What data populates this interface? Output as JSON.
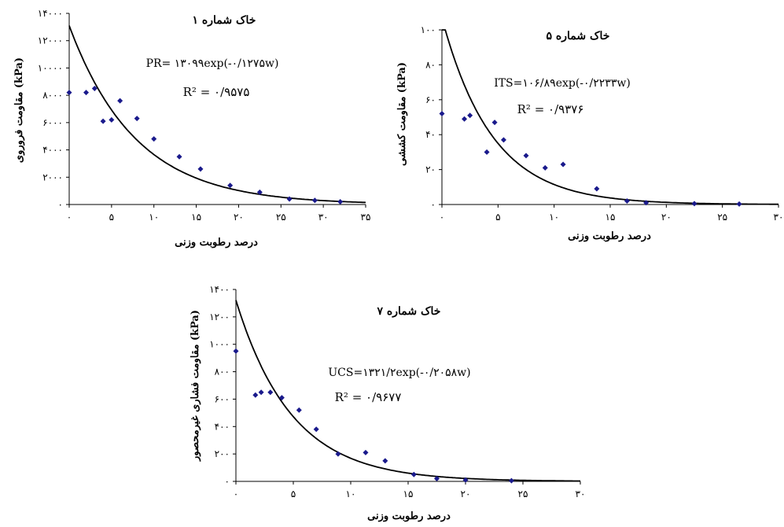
{
  "chart_data": [
    {
      "type": "scatter",
      "title": "خاک شماره ۱",
      "xlabel": "درصد رطوبت وزنی",
      "ylabel": "مقاومت فروروی (kPa)",
      "xlim": [
        0,
        35
      ],
      "ylim": [
        0,
        14000
      ],
      "xticks": [
        "۰",
        "۵",
        "۱۰",
        "۱۵",
        "۲۰",
        "۲۵",
        "۳۰",
        "۳۵"
      ],
      "yticks": [
        "۰",
        "۲۰۰۰",
        "۴۰۰۰",
        "۶۰۰۰",
        "۸۰۰۰",
        "۱۰۰۰۰",
        "۱۲۰۰۰",
        "۱۴۰۰۰"
      ],
      "equation": "PR= ۱۳۰۹۹exp(-۰/۱۲۷۵w)",
      "r2_label": "R² = ۰/۹۵۷۵",
      "fit": {
        "a": 13099,
        "b": 0.1275
      },
      "x": [
        0,
        2,
        3,
        4,
        5,
        6,
        8,
        10,
        13,
        15.5,
        19,
        22.5,
        26,
        29,
        32
      ],
      "y": [
        8200,
        8200,
        8500,
        6100,
        6200,
        7600,
        6300,
        4800,
        3500,
        2600,
        1400,
        900,
        400,
        300,
        200
      ]
    },
    {
      "type": "scatter",
      "title": "خاک شماره ۵",
      "xlabel": "درصد رطوبت وزنی",
      "ylabel": "مقاومت کششی (kPa)",
      "xlim": [
        0,
        30
      ],
      "ylim": [
        0,
        100
      ],
      "xticks": [
        "۰",
        "۵",
        "۱۰",
        "۱۵",
        "۲۰",
        "۲۵",
        "۳۰"
      ],
      "yticks": [
        "۰",
        "۲۰",
        "۴۰",
        "۶۰",
        "۸۰",
        "۱۰۰"
      ],
      "equation": "ITS=۱۰۶/۸۹exp(-۰/۲۲۳۳w)",
      "r2_label": "R² = ۰/۹۳۷۶",
      "fit": {
        "a": 106.89,
        "b": 0.2233
      },
      "x": [
        0,
        2,
        2.5,
        4,
        4.7,
        5.5,
        7.5,
        9.2,
        10.8,
        13.8,
        16.5,
        18.2,
        22.5,
        26.5
      ],
      "y": [
        52,
        49,
        51,
        30,
        47,
        37,
        28,
        21,
        23,
        9,
        2,
        1,
        0.5,
        0.3
      ]
    },
    {
      "type": "scatter",
      "title": "خاک شماره ۷",
      "xlabel": "درصد رطوبت وزنی",
      "ylabel": "مقاومت فشاری غیرمحصور (kPa)",
      "xlim": [
        0,
        30
      ],
      "ylim": [
        0,
        1400
      ],
      "xticks": [
        "۰",
        "۵",
        "۱۰",
        "۱۵",
        "۲۰",
        "۲۵",
        "۳۰"
      ],
      "yticks": [
        "۰",
        "۲۰۰",
        "۴۰۰",
        "۶۰۰",
        "۸۰۰",
        "۱۰۰۰",
        "۱۲۰۰",
        "۱۴۰۰"
      ],
      "equation": "UCS=۱۳۲۱/۲exp(-۰/۲۰۵۸w)",
      "r2_label": "R² = ۰/۹۶۷۷",
      "fit": {
        "a": 1321.2,
        "b": 0.2058
      },
      "x": [
        0,
        1.7,
        2.2,
        3,
        4,
        5.5,
        7,
        8.9,
        11.3,
        13,
        15.5,
        17.5,
        20,
        24
      ],
      "y": [
        950,
        630,
        650,
        650,
        610,
        520,
        380,
        200,
        210,
        150,
        50,
        20,
        10,
        5
      ]
    }
  ]
}
